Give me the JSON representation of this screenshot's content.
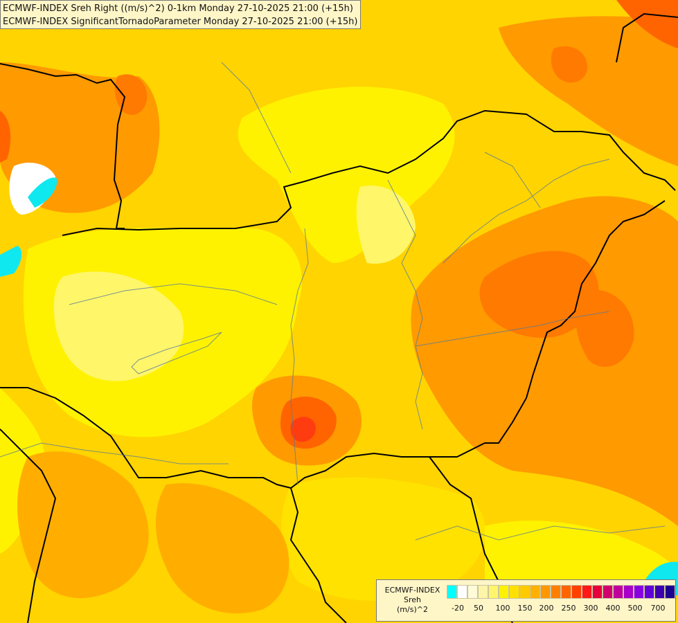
{
  "title": {
    "line1": "ECMWF-INDEX Sreh Right ((m/s)^2) 0-1km Monday 27-10-2025 21:00 (+15h)",
    "line2": "ECMWF-INDEX SignificantTornadoParameter Monday 27-10-2025 21:00 (+15h)"
  },
  "legend": {
    "label_lines": [
      "ECMWF-INDEX",
      "Sreh",
      "(m/s)^2"
    ],
    "colors": [
      "#00ffff",
      "#ffffff",
      "#fffbd8",
      "#fff5a8",
      "#fff56a",
      "#fff200",
      "#ffe000",
      "#ffcb00",
      "#ffb000",
      "#ff9800",
      "#ff7f00",
      "#ff6400",
      "#ff4000",
      "#ff1818",
      "#e8003c",
      "#d2006e",
      "#c0009c",
      "#a800c8",
      "#8800e0",
      "#6000d8",
      "#3c00b0",
      "#1c0090"
    ],
    "ticks": [
      "-20",
      "50",
      "100",
      "150",
      "200",
      "250",
      "300",
      "400",
      "500",
      "700"
    ]
  }
}
